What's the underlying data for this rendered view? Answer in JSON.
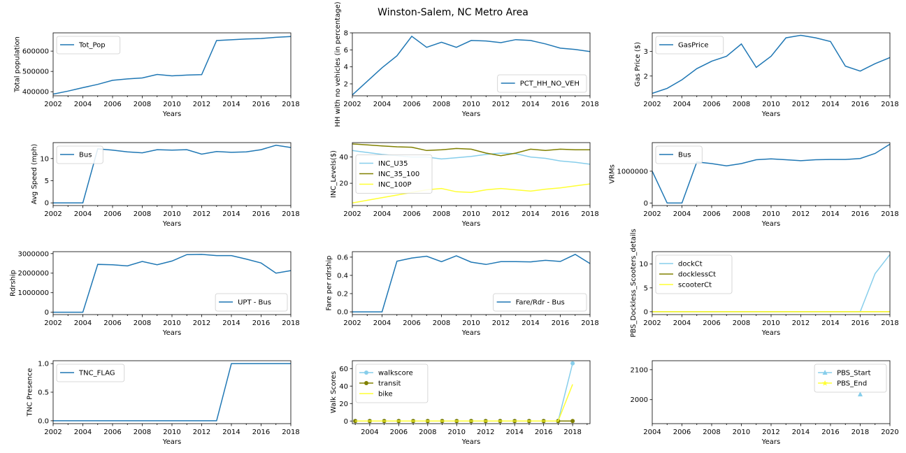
{
  "suptitle": "Winston-Salem, NC Metro Area",
  "chart_data": [
    {
      "type": "line",
      "xlabel": "Years",
      "ylabel": "Total population",
      "xlim": [
        2002,
        2018
      ],
      "ylim": [
        380000,
        690000
      ],
      "xticks": [
        2002,
        2004,
        2006,
        2008,
        2010,
        2012,
        2014,
        2016,
        2018
      ],
      "yticks": [
        400000,
        500000,
        600000
      ],
      "yticklabels": [
        "400000",
        "500000",
        "600000"
      ],
      "legend_loc": "upper left",
      "series": [
        {
          "name": "Tot_Pop",
          "color": "#1f77b4",
          "x": [
            2002,
            2003,
            2004,
            2005,
            2006,
            2007,
            2008,
            2009,
            2010,
            2011,
            2012,
            2013,
            2014,
            2015,
            2016,
            2017,
            2018
          ],
          "y": [
            388000,
            403000,
            420000,
            436000,
            456000,
            463000,
            468000,
            485000,
            478000,
            482000,
            484000,
            652000,
            656000,
            660000,
            662000,
            668000,
            672000
          ]
        }
      ]
    },
    {
      "type": "line",
      "xlabel": "Years",
      "ylabel": "HH with no vehicles (in percentage)",
      "xlim": [
        2002,
        2018
      ],
      "ylim": [
        0.6,
        8.0
      ],
      "xticks": [
        2002,
        2004,
        2006,
        2008,
        2010,
        2012,
        2014,
        2016,
        2018
      ],
      "yticks": [
        2,
        4,
        6,
        8
      ],
      "yticklabels": [
        "2",
        "4",
        "6",
        "8"
      ],
      "legend_loc": "lower right",
      "series": [
        {
          "name": "PCT_HH_NO_VEH",
          "color": "#1f77b4",
          "x": [
            2002,
            2003,
            2004,
            2005,
            2006,
            2007,
            2008,
            2009,
            2010,
            2011,
            2012,
            2013,
            2014,
            2015,
            2016,
            2017,
            2018
          ],
          "y": [
            0.7,
            2.3,
            3.9,
            5.3,
            7.6,
            6.3,
            6.9,
            6.3,
            7.1,
            7.05,
            6.85,
            7.2,
            7.1,
            6.7,
            6.2,
            6.05,
            5.8
          ]
        }
      ]
    },
    {
      "type": "line",
      "xlabel": "Years",
      "ylabel": "Gas Price ($)",
      "xlim": [
        2002,
        2018
      ],
      "ylim": [
        1.2,
        3.75
      ],
      "xticks": [
        2002,
        2004,
        2006,
        2008,
        2010,
        2012,
        2014,
        2016,
        2018
      ],
      "yticks": [
        2,
        3
      ],
      "yticklabels": [
        "2",
        "3"
      ],
      "legend_loc": "upper left",
      "series": [
        {
          "name": "GasPrice",
          "color": "#1f77b4",
          "x": [
            2002,
            2003,
            2004,
            2005,
            2006,
            2007,
            2008,
            2009,
            2010,
            2011,
            2012,
            2013,
            2014,
            2015,
            2016,
            2017,
            2018
          ],
          "y": [
            1.3,
            1.5,
            1.85,
            2.3,
            2.6,
            2.8,
            3.3,
            2.35,
            2.8,
            3.55,
            3.65,
            3.55,
            3.4,
            2.4,
            2.2,
            2.5,
            2.75
          ]
        }
      ]
    },
    {
      "type": "line",
      "xlabel": "Years",
      "ylabel": "Avg Speed (mph)",
      "xlim": [
        2002,
        2018
      ],
      "ylim": [
        -0.6,
        13.6
      ],
      "xticks": [
        2002,
        2004,
        2006,
        2008,
        2010,
        2012,
        2014,
        2016,
        2018
      ],
      "yticks": [
        0,
        5,
        10
      ],
      "yticklabels": [
        "0",
        "5",
        "10"
      ],
      "legend_loc": "upper left",
      "series": [
        {
          "name": "Bus",
          "color": "#1f77b4",
          "x": [
            2002,
            2003,
            2004,
            2005,
            2006,
            2007,
            2008,
            2009,
            2010,
            2011,
            2012,
            2013,
            2014,
            2015,
            2016,
            2017,
            2018
          ],
          "y": [
            0,
            0,
            0,
            12.2,
            11.9,
            11.5,
            11.3,
            12.0,
            11.9,
            12.0,
            11.0,
            11.6,
            11.4,
            11.5,
            12.0,
            13.0,
            12.5
          ]
        }
      ]
    },
    {
      "type": "line",
      "xlabel": "Years",
      "ylabel": "INC_Levels($)",
      "xlim": [
        2002,
        2018
      ],
      "ylim": [
        3,
        51
      ],
      "xticks": [
        2002,
        2004,
        2006,
        2008,
        2010,
        2012,
        2014,
        2016,
        2018
      ],
      "yticks": [
        20,
        40
      ],
      "yticklabels": [
        "20",
        "40"
      ],
      "legend_loc": "center left",
      "series": [
        {
          "name": "INC_U35",
          "color": "#87ceeb",
          "x": [
            2002,
            2003,
            2004,
            2005,
            2006,
            2007,
            2008,
            2009,
            2010,
            2011,
            2012,
            2013,
            2014,
            2015,
            2016,
            2017,
            2018
          ],
          "y": [
            45,
            43.5,
            42,
            41,
            40,
            40,
            38.5,
            39.5,
            40.5,
            42,
            43,
            42.5,
            40,
            39,
            37,
            36,
            34.5
          ]
        },
        {
          "name": "INC_35_100",
          "color": "#808000",
          "x": [
            2002,
            2003,
            2004,
            2005,
            2006,
            2007,
            2008,
            2009,
            2010,
            2011,
            2012,
            2013,
            2014,
            2015,
            2016,
            2017,
            2018
          ],
          "y": [
            50,
            49.3,
            48.5,
            47.8,
            47.5,
            45,
            45.5,
            46.5,
            46,
            43,
            41,
            43,
            46,
            45,
            46,
            45.5,
            45.5
          ]
        },
        {
          "name": "INC_100P",
          "color": "#ffff33",
          "x": [
            2002,
            2003,
            2004,
            2005,
            2006,
            2007,
            2008,
            2009,
            2010,
            2011,
            2012,
            2013,
            2014,
            2015,
            2016,
            2017,
            2018
          ],
          "y": [
            5,
            7,
            9,
            11,
            13,
            15,
            16,
            13.5,
            13,
            15,
            16,
            15,
            14,
            15.5,
            16.5,
            18,
            19.5
          ]
        }
      ]
    },
    {
      "type": "line",
      "xlabel": "Years",
      "ylabel": "VRMs",
      "xlim": [
        2002,
        2018
      ],
      "ylim": [
        -80000,
        1900000
      ],
      "xticks": [
        2002,
        2004,
        2006,
        2008,
        2010,
        2012,
        2014,
        2016,
        2018
      ],
      "yticks": [
        0,
        1000000
      ],
      "yticklabels": [
        "0",
        "1000000"
      ],
      "legend_loc": "upper left",
      "series": [
        {
          "name": "Bus",
          "color": "#1f77b4",
          "x": [
            2002,
            2003,
            2004,
            2005,
            2006,
            2007,
            2008,
            2009,
            2010,
            2011,
            2012,
            2013,
            2014,
            2015,
            2016,
            2017,
            2018
          ],
          "y": [
            1000000,
            0,
            0,
            1290000,
            1240000,
            1170000,
            1240000,
            1360000,
            1390000,
            1360000,
            1330000,
            1360000,
            1370000,
            1370000,
            1400000,
            1560000,
            1850000
          ]
        }
      ]
    },
    {
      "type": "line",
      "xlabel": "Years",
      "ylabel": "Rdrship",
      "xlim": [
        2002,
        2018
      ],
      "ylim": [
        -120000,
        3100000
      ],
      "xticks": [
        2002,
        2004,
        2006,
        2008,
        2010,
        2012,
        2014,
        2016,
        2018
      ],
      "yticks": [
        0,
        1000000,
        2000000,
        3000000
      ],
      "yticklabels": [
        "0",
        "1000000",
        "2000000",
        "3000000"
      ],
      "legend_loc": "lower right",
      "series": [
        {
          "name": "UPT - Bus",
          "color": "#1f77b4",
          "x": [
            2002,
            2003,
            2004,
            2005,
            2006,
            2007,
            2008,
            2009,
            2010,
            2011,
            2012,
            2013,
            2014,
            2015,
            2016,
            2017,
            2018
          ],
          "y": [
            0,
            0,
            0,
            2450000,
            2430000,
            2370000,
            2600000,
            2430000,
            2620000,
            2950000,
            2960000,
            2900000,
            2900000,
            2720000,
            2520000,
            2000000,
            2130000
          ]
        }
      ]
    },
    {
      "type": "line",
      "xlabel": "Years",
      "ylabel": "Fare per rdrship",
      "xlim": [
        2002,
        2018
      ],
      "ylim": [
        -0.03,
        0.66
      ],
      "xticks": [
        2002,
        2004,
        2006,
        2008,
        2010,
        2012,
        2014,
        2016,
        2018
      ],
      "yticks": [
        0.0,
        0.2,
        0.4,
        0.6
      ],
      "yticklabels": [
        "0.0",
        "0.2",
        "0.4",
        "0.6"
      ],
      "legend_loc": "lower right",
      "series": [
        {
          "name": "Fare/Rdr - Bus",
          "color": "#1f77b4",
          "x": [
            2002,
            2003,
            2004,
            2005,
            2006,
            2007,
            2008,
            2009,
            2010,
            2011,
            2012,
            2013,
            2014,
            2015,
            2016,
            2017,
            2018
          ],
          "y": [
            0,
            0,
            0,
            0.555,
            0.59,
            0.61,
            0.55,
            0.615,
            0.545,
            0.52,
            0.55,
            0.55,
            0.548,
            0.565,
            0.553,
            0.63,
            0.53
          ]
        }
      ]
    },
    {
      "type": "line",
      "xlabel": "Years",
      "ylabel": "PBS_Dockless_Scooters_details",
      "xlim": [
        2002,
        2018
      ],
      "ylim": [
        -0.6,
        12.6
      ],
      "xticks": [
        2002,
        2004,
        2006,
        2008,
        2010,
        2012,
        2014,
        2016,
        2018
      ],
      "yticks": [
        0,
        5,
        10
      ],
      "yticklabels": [
        "0",
        "5",
        "10"
      ],
      "legend_loc": "upper left",
      "series": [
        {
          "name": "dockCt",
          "color": "#87ceeb",
          "x": [
            2002,
            2003,
            2004,
            2005,
            2006,
            2007,
            2008,
            2009,
            2010,
            2011,
            2012,
            2013,
            2014,
            2015,
            2016,
            2017,
            2018
          ],
          "y": [
            0,
            0,
            0,
            0,
            0,
            0,
            0,
            0,
            0,
            0,
            0,
            0,
            0,
            0,
            0,
            8,
            12
          ]
        },
        {
          "name": "docklessCt",
          "color": "#808000",
          "x": [
            2002,
            2003,
            2004,
            2005,
            2006,
            2007,
            2008,
            2009,
            2010,
            2011,
            2012,
            2013,
            2014,
            2015,
            2016,
            2017,
            2018
          ],
          "y": [
            0,
            0,
            0,
            0,
            0,
            0,
            0,
            0,
            0,
            0,
            0,
            0,
            0,
            0,
            0,
            0,
            0
          ]
        },
        {
          "name": "scooterCt",
          "color": "#ffff33",
          "x": [
            2002,
            2003,
            2004,
            2005,
            2006,
            2007,
            2008,
            2009,
            2010,
            2011,
            2012,
            2013,
            2014,
            2015,
            2016,
            2017,
            2018
          ],
          "y": [
            0,
            0,
            0,
            0,
            0,
            0,
            0,
            0,
            0,
            0,
            0,
            0,
            0,
            0,
            0,
            0,
            0
          ]
        }
      ]
    },
    {
      "type": "line",
      "xlabel": "Years",
      "ylabel": "TNC Presence",
      "xlim": [
        2002,
        2018
      ],
      "ylim": [
        -0.05,
        1.05
      ],
      "xticks": [
        2002,
        2004,
        2006,
        2008,
        2010,
        2012,
        2014,
        2016,
        2018
      ],
      "yticks": [
        0.0,
        0.5,
        1.0
      ],
      "yticklabels": [
        "0.0",
        "0.5",
        "1.0"
      ],
      "legend_loc": "upper left",
      "series": [
        {
          "name": "TNC_FLAG",
          "color": "#1f77b4",
          "x": [
            2002,
            2003,
            2004,
            2005,
            2006,
            2007,
            2008,
            2009,
            2010,
            2011,
            2012,
            2013,
            2014,
            2015,
            2016,
            2017,
            2018
          ],
          "y": [
            0,
            0,
            0,
            0,
            0,
            0,
            0,
            0,
            0,
            0,
            0,
            0,
            1,
            1,
            1,
            1,
            1
          ]
        }
      ]
    },
    {
      "type": "line",
      "xlabel": "Years",
      "ylabel": "Walk Scores",
      "xlim": [
        2002.8,
        2019.2
      ],
      "ylim": [
        -3,
        69
      ],
      "xticks": [
        2004,
        2006,
        2008,
        2010,
        2012,
        2014,
        2016,
        2018
      ],
      "yticks": [
        0,
        20,
        40,
        60
      ],
      "yticklabels": [
        "0",
        "20",
        "40",
        "60"
      ],
      "legend_loc": "upper left",
      "series": [
        {
          "name": "walkscore",
          "color": "#87ceeb",
          "marker": "circle",
          "x": [
            2003,
            2004,
            2005,
            2006,
            2007,
            2008,
            2009,
            2010,
            2011,
            2012,
            2013,
            2014,
            2015,
            2016,
            2017,
            2018
          ],
          "y": [
            0,
            0,
            0,
            0,
            0,
            0,
            0,
            0,
            0,
            0,
            0,
            0,
            0,
            0,
            0,
            66
          ]
        },
        {
          "name": "transit",
          "color": "#808000",
          "marker": "circle",
          "x": [
            2003,
            2004,
            2005,
            2006,
            2007,
            2008,
            2009,
            2010,
            2011,
            2012,
            2013,
            2014,
            2015,
            2016,
            2017,
            2018
          ],
          "y": [
            0,
            0,
            0,
            0,
            0,
            0,
            0,
            0,
            0,
            0,
            0,
            0,
            0,
            0,
            0,
            0
          ]
        },
        {
          "name": "bike",
          "color": "#ffff33",
          "x": [
            2003,
            2004,
            2005,
            2006,
            2007,
            2008,
            2009,
            2010,
            2011,
            2012,
            2013,
            2014,
            2015,
            2016,
            2017,
            2018
          ],
          "y": [
            0,
            0,
            0,
            0,
            0,
            0,
            0,
            0,
            0,
            0,
            0,
            0,
            0,
            0,
            0,
            42
          ]
        }
      ]
    },
    {
      "type": "line",
      "xlabel": "Years",
      "ylabel": "",
      "xlim": [
        2004,
        2020
      ],
      "ylim": [
        1920,
        2130
      ],
      "xticks": [
        2004,
        2006,
        2008,
        2010,
        2012,
        2014,
        2016,
        2018,
        2020
      ],
      "yticks": [
        2000,
        2100
      ],
      "yticklabels": [
        "2000",
        "2100"
      ],
      "legend_loc": "upper right",
      "series": [
        {
          "name": "PBS_Start",
          "color": "#87ceeb",
          "marker": "triangle",
          "x": [
            2018
          ],
          "y": [
            2018
          ]
        },
        {
          "name": "PBS_End",
          "color": "#ffff33",
          "marker": "star",
          "x": [],
          "y": []
        }
      ]
    }
  ]
}
